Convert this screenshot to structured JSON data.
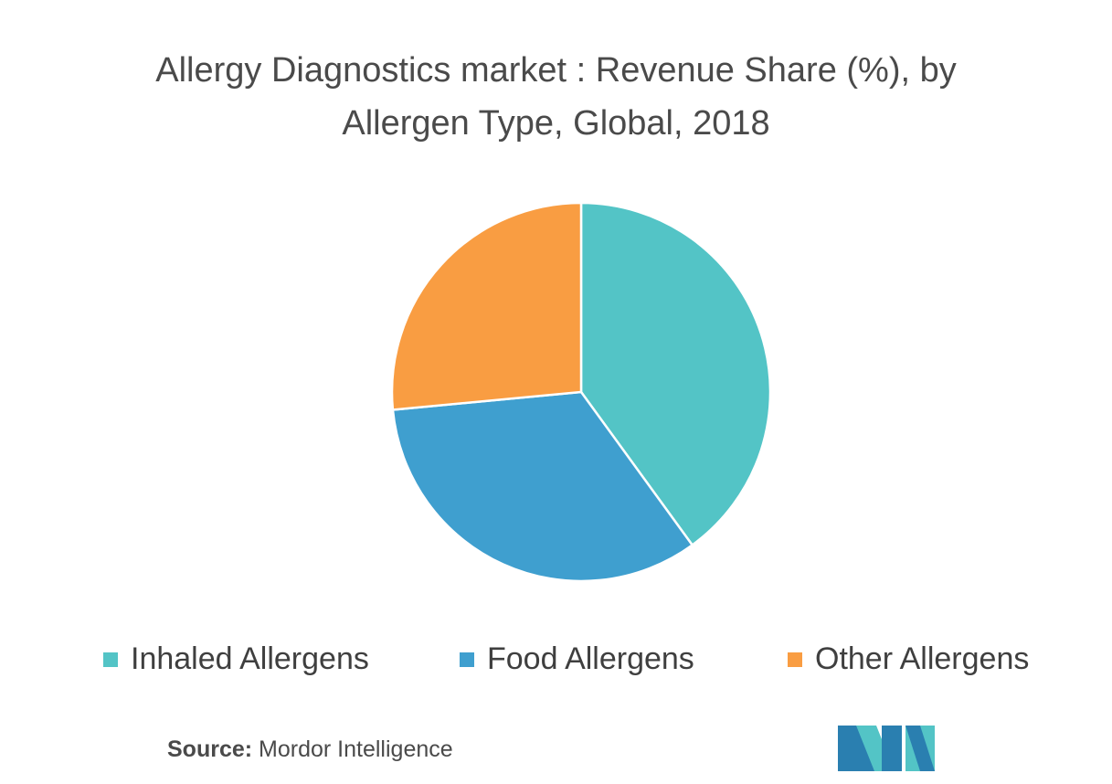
{
  "chart_data": {
    "type": "pie",
    "title_line1": "Allergy Diagnostics market : Revenue Share (%), by",
    "title_line2": "Allergen Type, Global,  2018",
    "slices": [
      {
        "label": "Inhaled Allergens",
        "value": 40,
        "color": "#53c4c6"
      },
      {
        "label": "Food Allergens",
        "value": 33.5,
        "color": "#3f9fcf"
      },
      {
        "label": "Other Allergens",
        "value": 26.5,
        "color": "#f99d42"
      }
    ],
    "legend_position": "bottom"
  },
  "source": {
    "label": "Source:",
    "text": "Mordor Intelligence"
  },
  "logo": {
    "icon": "mordor-intelligence-logo-icon",
    "colors": [
      "#2a7fb0",
      "#53c4c6"
    ]
  }
}
